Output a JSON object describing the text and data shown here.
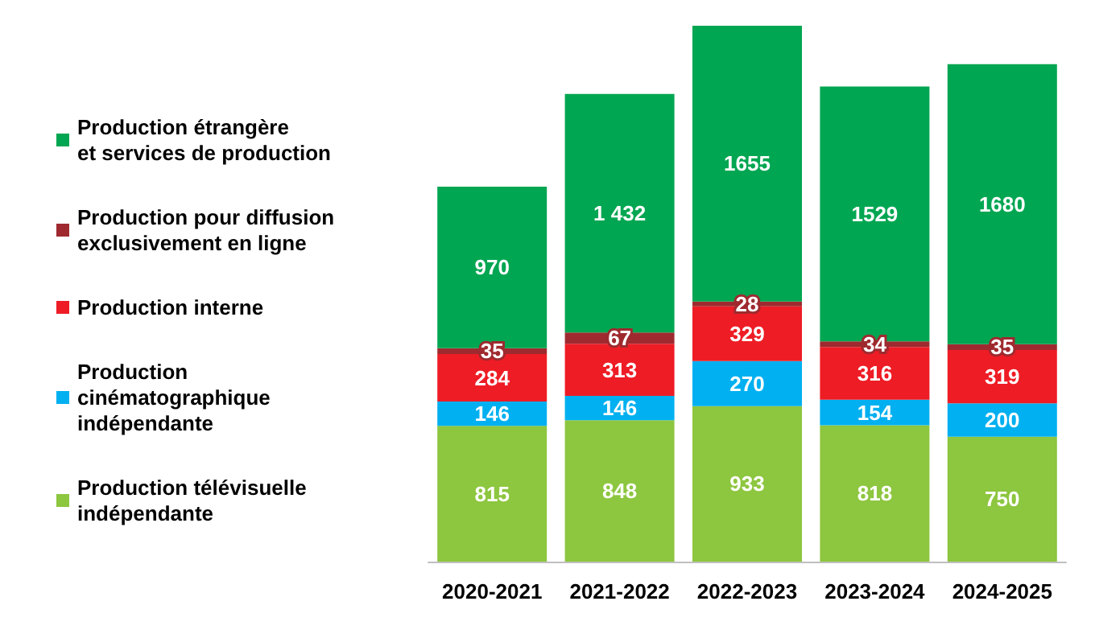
{
  "chart_data": {
    "type": "bar",
    "stacked": true,
    "legend": "left",
    "grid": false,
    "categories": [
      "2020-2021",
      "2021-2022",
      "2022-2023",
      "2023-2024",
      "2024-2025"
    ],
    "series": [
      {
        "name": "Production télévisuelle\nindépendante",
        "color": "#8dc63f",
        "values": [
          815,
          848,
          933,
          818,
          750
        ],
        "value_labels": [
          "815",
          "848",
          "933",
          "818",
          "750"
        ]
      },
      {
        "name": "Production\ncinématographique\nindépendante",
        "color": "#00b0f0",
        "values": [
          146,
          146,
          270,
          154,
          200
        ],
        "value_labels": [
          "146",
          "146",
          "270",
          "154",
          "200"
        ]
      },
      {
        "name": "Production interne",
        "color": "#ee1c25",
        "values": [
          284,
          313,
          329,
          316,
          319
        ],
        "value_labels": [
          "284",
          "313",
          "329",
          "316",
          "319"
        ]
      },
      {
        "name": "Production pour diffusion\nexclusivement en ligne",
        "color": "#9e2a2f",
        "values": [
          35,
          67,
          28,
          34,
          35
        ],
        "value_labels": [
          "35",
          "67",
          "28",
          "34",
          "35"
        ]
      },
      {
        "name": "Production étrangère\net services de production",
        "color": "#00a651",
        "values": [
          970,
          1432,
          1655,
          1529,
          1680
        ],
        "value_labels": [
          "970",
          "1 432",
          "1655",
          "1529",
          "1680"
        ]
      }
    ]
  }
}
